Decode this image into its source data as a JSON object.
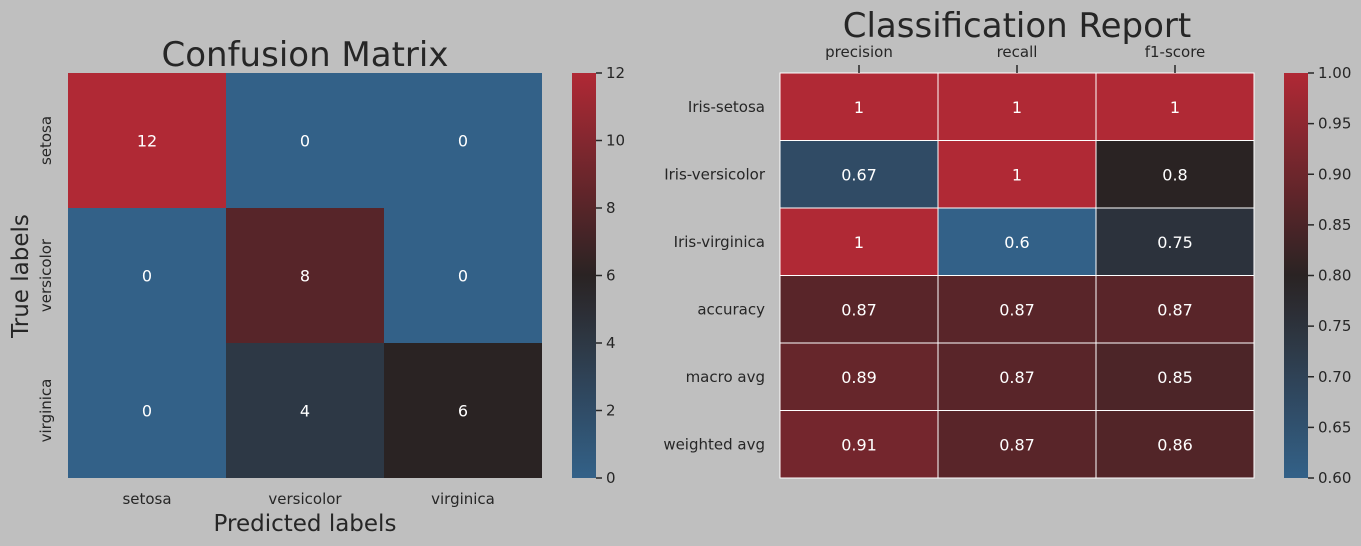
{
  "chart_data": [
    {
      "type": "heatmap",
      "title": "Confusion Matrix",
      "xlabel": "Predicted labels",
      "ylabel": "True labels",
      "x_categories": [
        "setosa",
        "versicolor",
        "virginica"
      ],
      "y_categories": [
        "setosa",
        "versicolor",
        "virginica"
      ],
      "values": [
        [
          12,
          0,
          0
        ],
        [
          0,
          8,
          0
        ],
        [
          0,
          4,
          6
        ]
      ],
      "cell_labels": [
        [
          "12",
          "0",
          "0"
        ],
        [
          "0",
          "8",
          "0"
        ],
        [
          "0",
          "4",
          "6"
        ]
      ],
      "colorbar": {
        "range": [
          0,
          12
        ],
        "ticks": [
          "0",
          "2",
          "4",
          "6",
          "8",
          "10",
          "12"
        ]
      },
      "colormap": {
        "low": "#336188",
        "mid": "#2a2323",
        "high": "#b02935"
      },
      "cell_borders": false
    },
    {
      "type": "heatmap",
      "title": "Classification Report",
      "xlabel": "",
      "ylabel": "",
      "x_categories": [
        "precision",
        "recall",
        "f1-score"
      ],
      "y_categories": [
        "Iris-setosa",
        "Iris-versicolor",
        "Iris-virginica",
        "accuracy",
        "macro avg",
        "weighted avg"
      ],
      "values": [
        [
          1,
          1,
          1
        ],
        [
          0.67,
          1,
          0.8
        ],
        [
          1,
          0.6,
          0.75
        ],
        [
          0.87,
          0.87,
          0.87
        ],
        [
          0.89,
          0.87,
          0.85
        ],
        [
          0.91,
          0.87,
          0.86
        ]
      ],
      "cell_labels": [
        [
          "1",
          "1",
          "1"
        ],
        [
          "0.67",
          "1",
          "0.8"
        ],
        [
          "1",
          "0.6",
          "0.75"
        ],
        [
          "0.87",
          "0.87",
          "0.87"
        ],
        [
          "0.89",
          "0.87",
          "0.85"
        ],
        [
          "0.91",
          "0.87",
          "0.86"
        ]
      ],
      "colorbar": {
        "range": [
          0.6,
          1.0
        ],
        "ticks": [
          "0.60",
          "0.65",
          "0.70",
          "0.75",
          "0.80",
          "0.85",
          "0.90",
          "0.95",
          "1.00"
        ]
      },
      "colormap": {
        "low": "#336188",
        "mid": "#2a2323",
        "high": "#b02935"
      },
      "x_ticks_position": "top",
      "cell_borders": true
    }
  ]
}
